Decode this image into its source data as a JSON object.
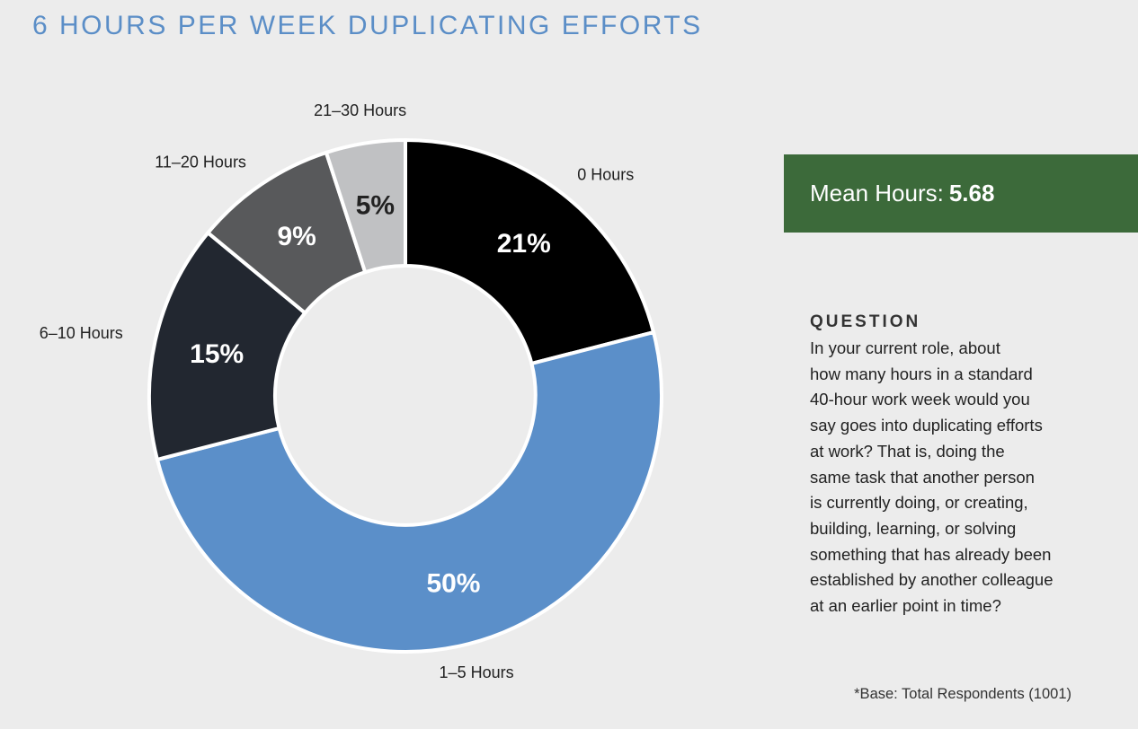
{
  "header": {
    "title": "6 HOURS PER WEEK DUPLICATING EFFORTS"
  },
  "chart_data": {
    "type": "pie",
    "subtype": "donut",
    "title": "6 HOURS PER WEEK DUPLICATING EFFORTS",
    "categories": [
      "0 Hours",
      "1–5 Hours",
      "6–10 Hours",
      "11–20 Hours",
      "21–30 Hours"
    ],
    "values": [
      21,
      50,
      15,
      9,
      5
    ],
    "value_labels": [
      "21%",
      "50%",
      "15%",
      "9%",
      "5%"
    ],
    "colors": [
      "#000000",
      "#5b8fc9",
      "#222730",
      "#58595b",
      "#c0c1c3"
    ],
    "label_colors": [
      "#ffffff",
      "#ffffff",
      "#ffffff",
      "#ffffff",
      "#222222"
    ]
  },
  "summary": {
    "mean_label": "Mean Hours:",
    "mean_value": "5.68"
  },
  "question": {
    "heading": "QUESTION",
    "lines": [
      "In your current role, about",
      "how many hours in a standard",
      "40-hour work week would you",
      "say goes into duplicating efforts",
      "at work? That is, doing the",
      "same task that another person",
      "is currently doing, or creating,",
      "building, learning, or solving",
      "something that has already been",
      "established by another colleague",
      "at an earlier point in time?"
    ]
  },
  "footnote": "*Base: Total Respondents (1001)"
}
